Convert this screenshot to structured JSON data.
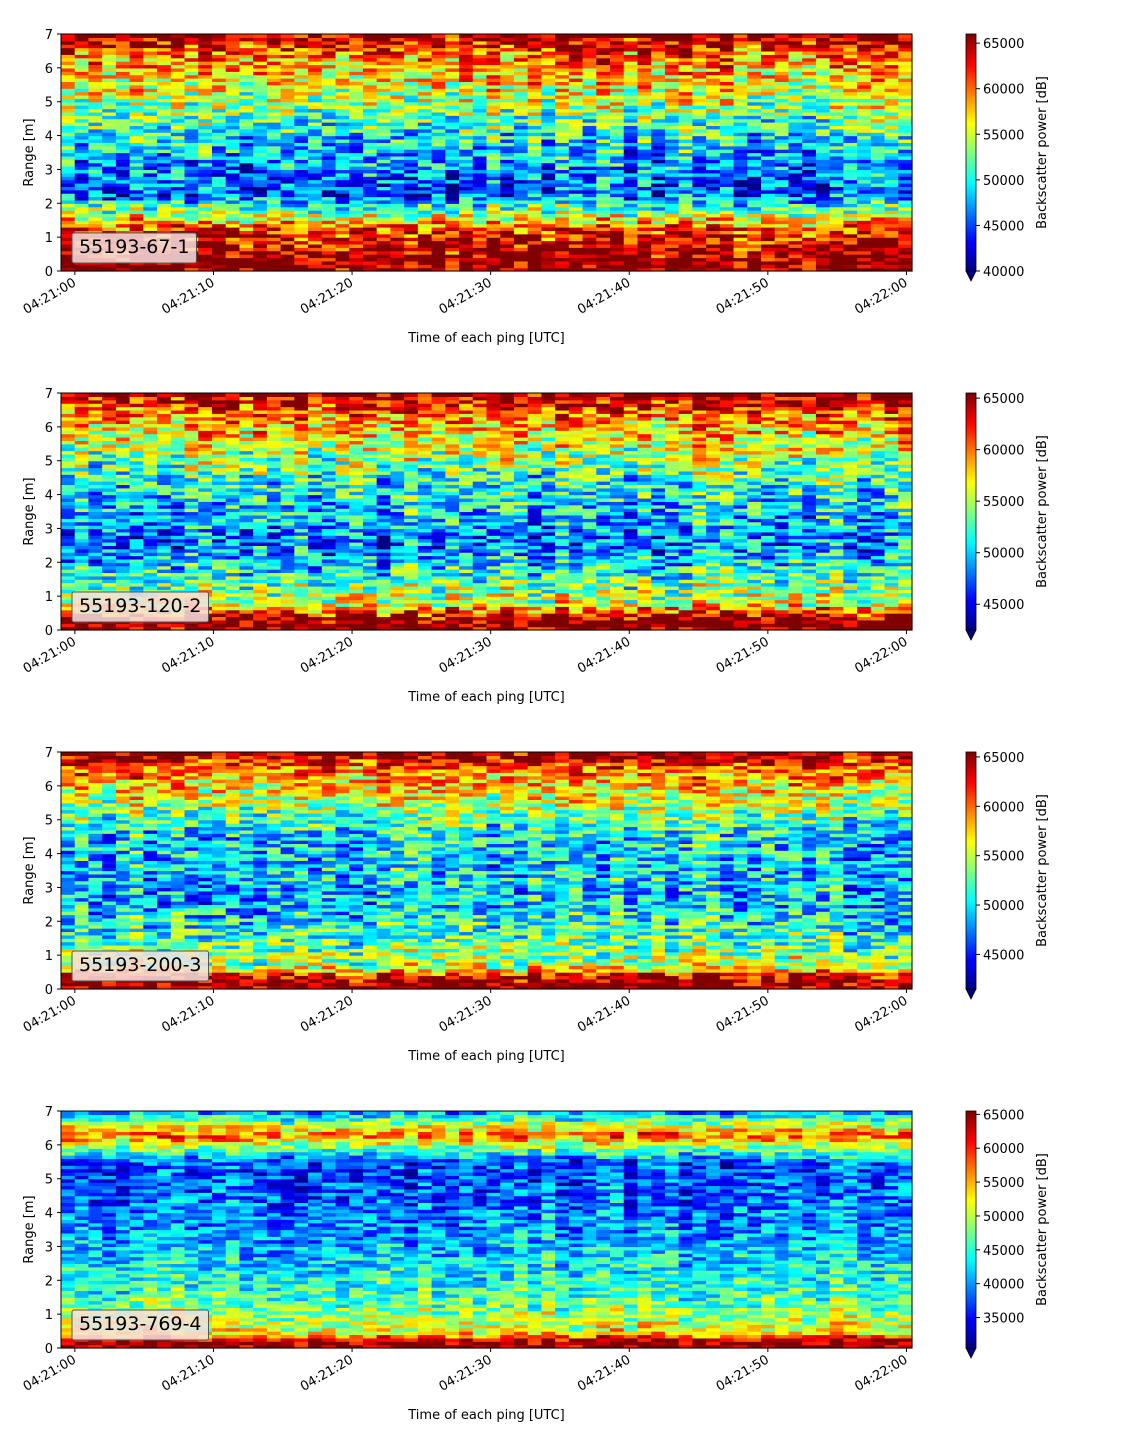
{
  "chart_data": [
    {
      "type": "heatmap",
      "label": "55193-67-1",
      "xlabel": "Time of each ping [UTC]",
      "ylabel": "Range [m]",
      "colorbar_label": "Backscatter power [dB]",
      "x_ticks": [
        "04:21:00",
        "04:21:10",
        "04:21:20",
        "04:21:30",
        "04:21:40",
        "04:21:50",
        "04:22:00"
      ],
      "y_ticks": [
        0,
        1,
        2,
        3,
        4,
        5,
        6,
        7
      ],
      "xlim": [
        "04:20:59",
        "04:22:00.4"
      ],
      "ylim": [
        0,
        7
      ],
      "clim": [
        40000,
        66000
      ],
      "colorbar_ticks": [
        40000,
        45000,
        50000,
        55000,
        60000,
        65000
      ],
      "colormap": "jet",
      "colorbar_extend": "min",
      "n_pings": 62,
      "value_profile": [
        {
          "range_m": 0.3,
          "value": 66000
        },
        {
          "range_m": 1.2,
          "value": 62000
        },
        {
          "range_m": 2.3,
          "value": 45000
        },
        {
          "range_m": 4.0,
          "value": 50000
        },
        {
          "range_m": 6.4,
          "value": 60000
        },
        {
          "range_m": 7.0,
          "value": 66000
        }
      ],
      "noise_spread": 5500
    },
    {
      "type": "heatmap",
      "label": "55193-120-2",
      "xlabel": "Time of each ping [UTC]",
      "ylabel": "Range [m]",
      "colorbar_label": "Backscatter power [dB]",
      "x_ticks": [
        "04:21:00",
        "04:21:10",
        "04:21:20",
        "04:21:30",
        "04:21:40",
        "04:21:50",
        "04:22:00"
      ],
      "y_ticks": [
        0,
        1,
        2,
        3,
        4,
        5,
        6,
        7
      ],
      "xlim": [
        "04:20:59",
        "04:22:00.4"
      ],
      "ylim": [
        0,
        7
      ],
      "clim": [
        42500,
        65500
      ],
      "colorbar_ticks": [
        45000,
        50000,
        55000,
        60000,
        65000
      ],
      "colormap": "jet",
      "colorbar_extend": "min",
      "n_pings": 62,
      "value_profile": [
        {
          "range_m": 0.3,
          "value": 65500
        },
        {
          "range_m": 0.8,
          "value": 56000
        },
        {
          "range_m": 2.5,
          "value": 48000
        },
        {
          "range_m": 4.5,
          "value": 52000
        },
        {
          "range_m": 6.4,
          "value": 60000
        },
        {
          "range_m": 7.0,
          "value": 65500
        }
      ],
      "noise_spread": 5000
    },
    {
      "type": "heatmap",
      "label": "55193-200-3",
      "xlabel": "Time of each ping [UTC]",
      "ylabel": "Range [m]",
      "colorbar_label": "Backscatter power [dB]",
      "x_ticks": [
        "04:21:00",
        "04:21:10",
        "04:21:20",
        "04:21:30",
        "04:21:40",
        "04:21:50",
        "04:22:00"
      ],
      "y_ticks": [
        0,
        1,
        2,
        3,
        4,
        5,
        6,
        7
      ],
      "xlim": [
        "04:20:59",
        "04:22:00.4"
      ],
      "ylim": [
        0,
        7
      ],
      "clim": [
        41500,
        65500
      ],
      "colorbar_ticks": [
        45000,
        50000,
        55000,
        60000,
        65000
      ],
      "colormap": "jet",
      "colorbar_extend": "min",
      "n_pings": 62,
      "value_profile": [
        {
          "range_m": 0.3,
          "value": 65000
        },
        {
          "range_m": 0.7,
          "value": 55000
        },
        {
          "range_m": 2.5,
          "value": 49000
        },
        {
          "range_m": 4.5,
          "value": 50000
        },
        {
          "range_m": 6.5,
          "value": 60000
        },
        {
          "range_m": 7.0,
          "value": 65500
        }
      ],
      "noise_spread": 5000
    },
    {
      "type": "heatmap",
      "label": "55193-769-4",
      "xlabel": "Time of each ping [UTC]",
      "ylabel": "Range [m]",
      "colorbar_label": "Backscatter power [dB]",
      "x_ticks": [
        "04:21:00",
        "04:21:10",
        "04:21:20",
        "04:21:30",
        "04:21:40",
        "04:21:50",
        "04:22:00"
      ],
      "y_ticks": [
        0,
        1,
        2,
        3,
        4,
        5,
        6,
        7
      ],
      "xlim": [
        "04:20:59",
        "04:22:00.4"
      ],
      "ylim": [
        0,
        7
      ],
      "clim": [
        30500,
        65500
      ],
      "colorbar_ticks": [
        35000,
        40000,
        45000,
        50000,
        55000,
        60000,
        65000
      ],
      "colormap": "jet",
      "colorbar_extend": "min",
      "n_pings": 62,
      "value_profile": [
        {
          "range_m": 0.2,
          "value": 65000
        },
        {
          "range_m": 0.5,
          "value": 52000
        },
        {
          "range_m": 1.5,
          "value": 46000
        },
        {
          "range_m": 3.5,
          "value": 40000
        },
        {
          "range_m": 5.5,
          "value": 37000
        },
        {
          "range_m": 6.3,
          "value": 58000
        },
        {
          "range_m": 7.0,
          "value": 40000
        }
      ],
      "noise_spread": 5500
    }
  ]
}
